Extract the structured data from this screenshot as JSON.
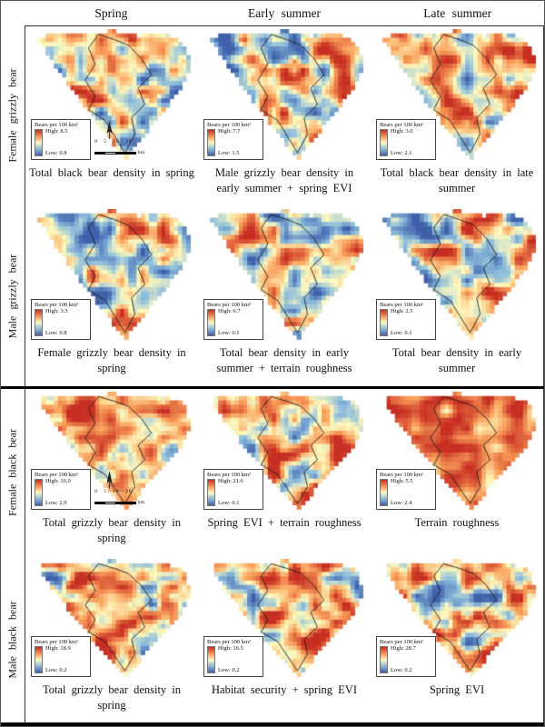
{
  "figure": {
    "column_headers": [
      "Spring",
      "Early summer",
      "Late summer"
    ],
    "scalebar": {
      "ticks": "0 5 10 20",
      "unit": "km"
    },
    "colors": {
      "high": "#c72e22",
      "mid": "#fefbbf",
      "low": "#3e60aa"
    },
    "rows": [
      {
        "label": "Female grizzly bear",
        "cells": [
          {
            "legend": {
              "title": "Bears per 100 km²",
              "high_label": "High: 8.5",
              "low_label": "Low: 0.8"
            },
            "caption": "Total black bear density in spring"
          },
          {
            "legend": {
              "title": "Bears per 100 km²",
              "high_label": "High: 7.7",
              "low_label": "Low: 1.5"
            },
            "caption": "Male grizzly bear density in early summer + spring EVI"
          },
          {
            "legend": {
              "title": "Bears per 100 km²",
              "high_label": "High: 3.0",
              "low_label": "Low: 2.1"
            },
            "caption": "Total black bear density in late summer"
          }
        ]
      },
      {
        "label": "Male grizzly bear",
        "cells": [
          {
            "legend": {
              "title": "Bears per 100 km²",
              "high_label": "High: 3.3",
              "low_label": "Low: 0.8"
            },
            "caption": "Female grizzly bear density in spring"
          },
          {
            "legend": {
              "title": "Bears per 100 km²",
              "high_label": "High: 6.7",
              "low_label": "Low: 0.1"
            },
            "caption": "Total bear density in early summer + terrain roughness"
          },
          {
            "legend": {
              "title": "Bears per 100 km²",
              "high_label": "High: 2.5",
              "low_label": "Low: 0.1"
            },
            "caption": "Total bear density in early summer"
          }
        ]
      },
      {
        "label": "Female black bear",
        "cells": [
          {
            "legend": {
              "title": "Bears per 100 km²",
              "high_label": "High: 16.0",
              "low_label": "Low: 2.9"
            },
            "caption": "Total grizzly bear density in spring"
          },
          {
            "legend": {
              "title": "Bears per 100 km²",
              "high_label": "High: 21.6",
              "low_label": "Low: 0.1"
            },
            "caption": "Spring EVI + terrain roughness"
          },
          {
            "legend": {
              "title": "Bears per 100 km²",
              "high_label": "High: 5.5",
              "low_label": "Low: 2.4"
            },
            "caption": "Terrain roughness"
          }
        ]
      },
      {
        "label": "Male black bear",
        "cells": [
          {
            "legend": {
              "title": "Bears per 100 km²",
              "high_label": "High: 18.9",
              "low_label": "Low: 0.2"
            },
            "caption": "Total grizzly bear density in spring"
          },
          {
            "legend": {
              "title": "Bears per 100 km²",
              "high_label": "High: 16.5",
              "low_label": "Low: 0.2"
            },
            "caption": "Habitat security + spring EVI"
          },
          {
            "legend": {
              "title": "Bears per 100 km²",
              "high_label": "High: 28.7",
              "low_label": "Low: 0.2"
            },
            "caption": "Spring EVI"
          }
        ]
      }
    ]
  }
}
